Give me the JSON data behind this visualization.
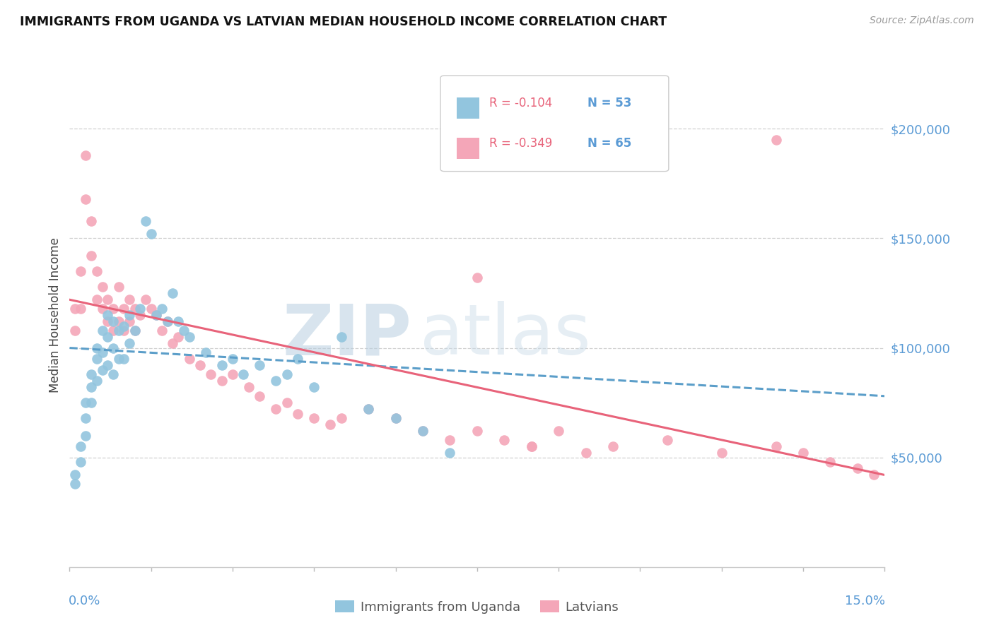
{
  "title": "IMMIGRANTS FROM UGANDA VS LATVIAN MEDIAN HOUSEHOLD INCOME CORRELATION CHART",
  "source": "Source: ZipAtlas.com",
  "ylabel": "Median Household Income",
  "xlim": [
    0.0,
    0.15
  ],
  "ylim": [
    0,
    230000
  ],
  "yticks": [
    50000,
    100000,
    150000,
    200000
  ],
  "ytick_labels": [
    "$50,000",
    "$100,000",
    "$150,000",
    "$200,000"
  ],
  "legend_r1": "R = -0.104",
  "legend_n1": "N = 53",
  "legend_r2": "R = -0.349",
  "legend_n2": "N = 65",
  "color_blue": "#92c5de",
  "color_pink": "#f4a6b8",
  "color_blue_line": "#5b9ec9",
  "color_pink_line": "#e8637a",
  "color_axis_blue": "#5b9bd5",
  "watermark_zip": "ZIP",
  "watermark_atlas": "atlas",
  "blue_scatter_x": [
    0.001,
    0.001,
    0.002,
    0.002,
    0.003,
    0.003,
    0.003,
    0.004,
    0.004,
    0.004,
    0.005,
    0.005,
    0.005,
    0.006,
    0.006,
    0.006,
    0.007,
    0.007,
    0.007,
    0.008,
    0.008,
    0.008,
    0.009,
    0.009,
    0.01,
    0.01,
    0.011,
    0.011,
    0.012,
    0.013,
    0.014,
    0.015,
    0.016,
    0.017,
    0.018,
    0.019,
    0.02,
    0.021,
    0.022,
    0.025,
    0.028,
    0.03,
    0.032,
    0.035,
    0.038,
    0.04,
    0.042,
    0.045,
    0.05,
    0.055,
    0.06,
    0.065,
    0.07
  ],
  "blue_scatter_y": [
    42000,
    38000,
    55000,
    48000,
    75000,
    68000,
    60000,
    88000,
    82000,
    75000,
    100000,
    95000,
    85000,
    108000,
    98000,
    90000,
    115000,
    105000,
    92000,
    112000,
    100000,
    88000,
    108000,
    95000,
    110000,
    95000,
    115000,
    102000,
    108000,
    118000,
    158000,
    152000,
    115000,
    118000,
    112000,
    125000,
    112000,
    108000,
    105000,
    98000,
    92000,
    95000,
    88000,
    92000,
    85000,
    88000,
    95000,
    82000,
    105000,
    72000,
    68000,
    62000,
    52000
  ],
  "pink_scatter_x": [
    0.001,
    0.001,
    0.002,
    0.002,
    0.003,
    0.003,
    0.004,
    0.004,
    0.005,
    0.005,
    0.006,
    0.006,
    0.007,
    0.007,
    0.008,
    0.008,
    0.009,
    0.009,
    0.01,
    0.01,
    0.011,
    0.011,
    0.012,
    0.012,
    0.013,
    0.014,
    0.015,
    0.016,
    0.017,
    0.018,
    0.019,
    0.02,
    0.022,
    0.024,
    0.026,
    0.028,
    0.03,
    0.033,
    0.035,
    0.038,
    0.04,
    0.042,
    0.045,
    0.048,
    0.05,
    0.055,
    0.06,
    0.065,
    0.07,
    0.075,
    0.08,
    0.085,
    0.09,
    0.1,
    0.11,
    0.12,
    0.13,
    0.135,
    0.14,
    0.145,
    0.148,
    0.13,
    0.095,
    0.085,
    0.075
  ],
  "pink_scatter_y": [
    118000,
    108000,
    135000,
    118000,
    188000,
    168000,
    158000,
    142000,
    135000,
    122000,
    128000,
    118000,
    122000,
    112000,
    118000,
    108000,
    128000,
    112000,
    118000,
    108000,
    122000,
    112000,
    118000,
    108000,
    115000,
    122000,
    118000,
    115000,
    108000,
    112000,
    102000,
    105000,
    95000,
    92000,
    88000,
    85000,
    88000,
    82000,
    78000,
    72000,
    75000,
    70000,
    68000,
    65000,
    68000,
    72000,
    68000,
    62000,
    58000,
    62000,
    58000,
    55000,
    62000,
    55000,
    58000,
    52000,
    55000,
    52000,
    48000,
    45000,
    42000,
    195000,
    52000,
    55000,
    132000
  ],
  "blue_line_y0": 100000,
  "blue_line_y1": 78000,
  "pink_line_y0": 122000,
  "pink_line_y1": 42000
}
